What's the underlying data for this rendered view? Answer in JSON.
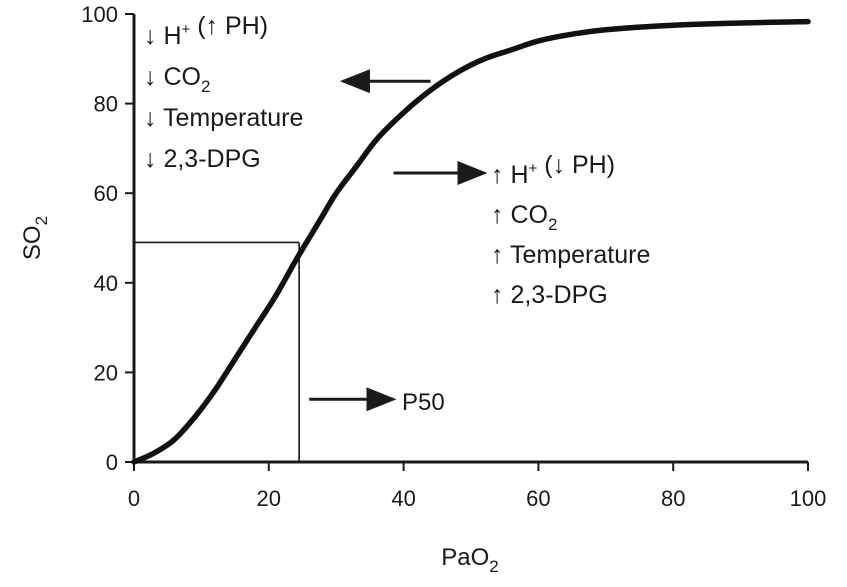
{
  "chart_data": {
    "type": "line",
    "xlabel": {
      "base": "PaO",
      "sub": "2"
    },
    "ylabel": {
      "base": "SO",
      "sub": "2"
    },
    "xlim": [
      0,
      100
    ],
    "ylim": [
      0,
      100
    ],
    "x_ticks": [
      0,
      20,
      40,
      60,
      80,
      100
    ],
    "y_ticks": [
      0,
      20,
      40,
      60,
      80,
      100
    ],
    "grid": false,
    "series": [
      {
        "points": [
          [
            0,
            0
          ],
          [
            3,
            2
          ],
          [
            6,
            5
          ],
          [
            9,
            10
          ],
          [
            12,
            16
          ],
          [
            15,
            23
          ],
          [
            18,
            30
          ],
          [
            21,
            37
          ],
          [
            24,
            45
          ],
          [
            26,
            50
          ],
          [
            28,
            55
          ],
          [
            30,
            60
          ],
          [
            33,
            66
          ],
          [
            36,
            72
          ],
          [
            40,
            78
          ],
          [
            44,
            83
          ],
          [
            48,
            87
          ],
          [
            52,
            90
          ],
          [
            56,
            92
          ],
          [
            60,
            94
          ],
          [
            65,
            95.5
          ],
          [
            70,
            96.5
          ],
          [
            80,
            97.5
          ],
          [
            90,
            98
          ],
          [
            100,
            98.3
          ]
        ]
      }
    ],
    "p50": {
      "x": 24.5,
      "y": 49
    },
    "annotations": {
      "left_shift": {
        "arrow": {
          "from": [
            44,
            85
          ],
          "to": [
            31,
            85
          ]
        },
        "lines": [
          {
            "glyph": "↓",
            "parts": [
              {
                "t": "H"
              },
              {
                "t": "+",
                "sup": true
              },
              {
                "t": " ("
              },
              {
                "t": "↑"
              },
              {
                "t": " PH)"
              }
            ]
          },
          {
            "glyph": "↓",
            "parts": [
              {
                "t": "CO"
              },
              {
                "t": "2",
                "sub": true
              }
            ]
          },
          {
            "glyph": "↓",
            "parts": [
              {
                "t": "Temperature"
              }
            ]
          },
          {
            "glyph": "↓",
            "parts": [
              {
                "t": "2,3-DPG"
              }
            ]
          }
        ]
      },
      "right_shift": {
        "arrow": {
          "from": [
            38.5,
            64.5
          ],
          "to": [
            52,
            64.5
          ]
        },
        "lines": [
          {
            "glyph": "↑",
            "parts": [
              {
                "t": "H"
              },
              {
                "t": "+",
                "sup": true
              },
              {
                "t": " ("
              },
              {
                "t": "↓"
              },
              {
                "t": " PH)"
              }
            ]
          },
          {
            "glyph": "↑",
            "parts": [
              {
                "t": "CO"
              },
              {
                "t": "2",
                "sub": true
              }
            ]
          },
          {
            "glyph": "↑",
            "parts": [
              {
                "t": "Temperature"
              }
            ]
          },
          {
            "glyph": "↑",
            "parts": [
              {
                "t": "2,3-DPG"
              }
            ]
          }
        ]
      },
      "p50_label": {
        "text": "P50",
        "arrow": {
          "from": [
            26,
            14
          ],
          "to": [
            38.5,
            14
          ]
        }
      }
    }
  }
}
